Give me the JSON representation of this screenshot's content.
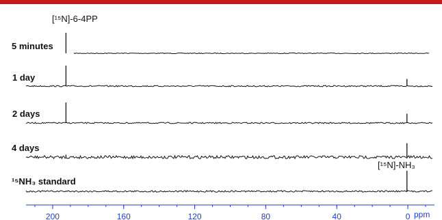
{
  "accent_bar_color": "#c21a22",
  "axis_color": "#1f3fbf",
  "chart_data": {
    "type": "line",
    "title": "",
    "xlabel": "ppm",
    "ylabel": "",
    "x_reversed": true,
    "xlim": [
      215,
      -15
    ],
    "x_ticks": [
      200,
      160,
      120,
      80,
      40,
      0
    ],
    "x_tick_labels": [
      "200",
      "160",
      "120",
      "80",
      "40",
      "0"
    ],
    "series": [
      {
        "name": "5 minutes",
        "peaks": [
          {
            "ppm": 192.5,
            "height": 1.0
          }
        ]
      },
      {
        "name": "1 day",
        "peaks": [
          {
            "ppm": 192.5,
            "height": 1.0
          },
          {
            "ppm": 0.5,
            "height": 0.35
          }
        ]
      },
      {
        "name": "2 days",
        "peaks": [
          {
            "ppm": 192.5,
            "height": 1.0
          },
          {
            "ppm": 0.5,
            "height": 0.45
          }
        ]
      },
      {
        "name": "4 days",
        "peaks": [
          {
            "ppm": 192.5,
            "height": 0.15
          },
          {
            "ppm": 0.5,
            "height": 0.85
          }
        ]
      },
      {
        "name": "¹⁵NH₃ standard",
        "peaks": [
          {
            "ppm": 0.5,
            "height": 1.0
          }
        ]
      }
    ],
    "annotations": [
      {
        "text": "[¹⁵N]-6-4PP",
        "ppm": 192.5
      },
      {
        "text": "[¹⁵N]-NH₃",
        "ppm": 0.5
      }
    ]
  }
}
